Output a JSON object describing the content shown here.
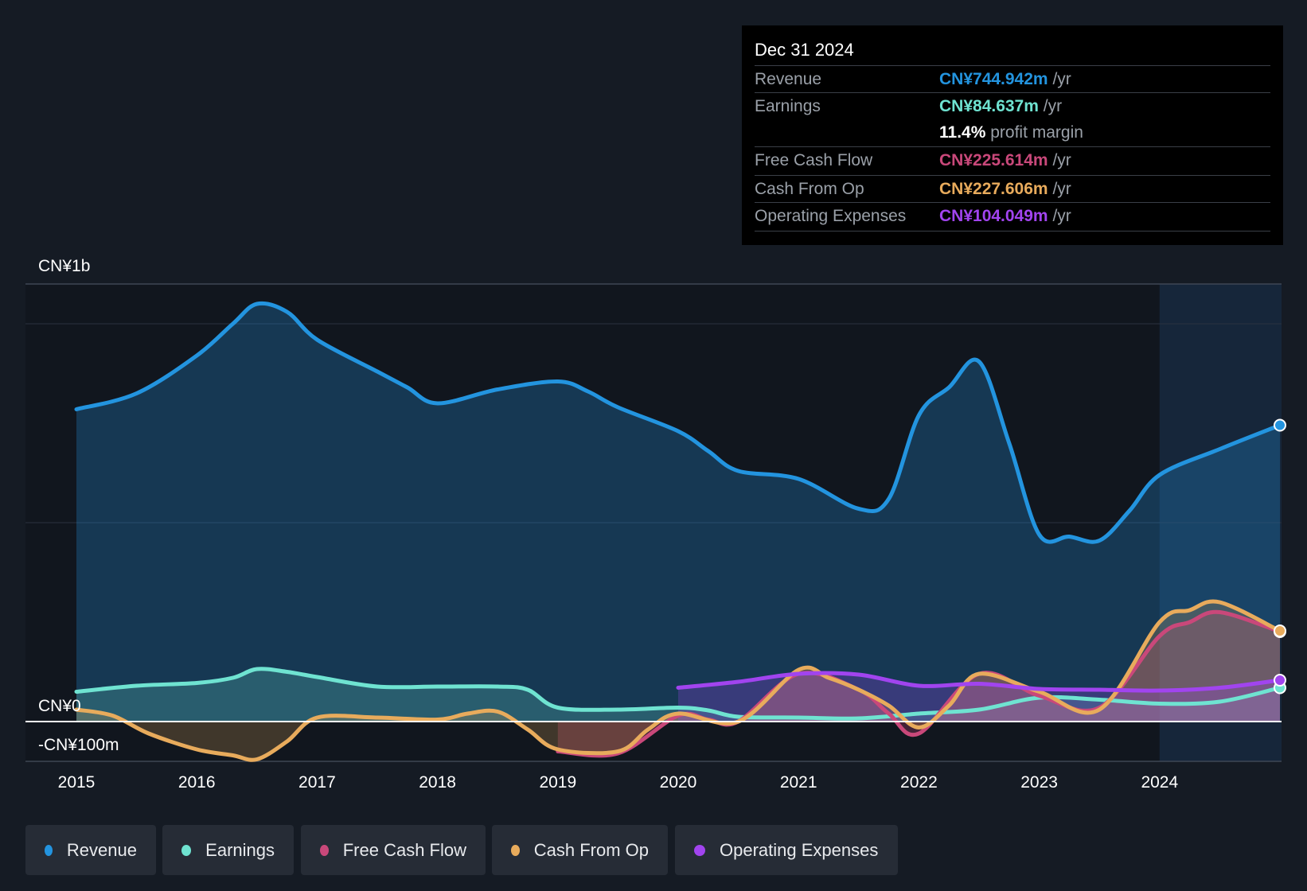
{
  "tooltip": {
    "date": "Dec 31 2024",
    "rows": [
      {
        "label": "Revenue",
        "value": "CN¥744.942m",
        "unit": "/yr",
        "color": "#2394df"
      },
      {
        "label": "Earnings",
        "value": "CN¥84.637m",
        "unit": "/yr",
        "color": "#6fe3d1"
      },
      {
        "label": "",
        "value": "11.4%",
        "unit": "profit margin",
        "color": "#ffffff"
      },
      {
        "label": "Free Cash Flow",
        "value": "CN¥225.614m",
        "unit": "/yr",
        "color": "#c9487a"
      },
      {
        "label": "Cash From Op",
        "value": "CN¥227.606m",
        "unit": "/yr",
        "color": "#e8ab5c"
      },
      {
        "label": "Operating Expenses",
        "value": "CN¥104.049m",
        "unit": "/yr",
        "color": "#a144ef"
      }
    ]
  },
  "legend": [
    {
      "label": "Revenue",
      "color": "#2394df"
    },
    {
      "label": "Earnings",
      "color": "#6fe3d1"
    },
    {
      "label": "Free Cash Flow",
      "color": "#c9487a"
    },
    {
      "label": "Cash From Op",
      "color": "#e8ab5c"
    },
    {
      "label": "Operating Expenses",
      "color": "#a144ef"
    }
  ],
  "chart_data": {
    "type": "area",
    "y_unit": "CN¥m",
    "ylim": [
      -100,
      1100
    ],
    "y_tick_labels": [
      {
        "value": 1100,
        "label": "CN¥1b"
      },
      {
        "value": 0,
        "label": "CN¥0"
      },
      {
        "value": -100,
        "label": "-CN¥100m"
      }
    ],
    "x_range": [
      2015,
      2025
    ],
    "x_ticks": [
      "2015",
      "2016",
      "2017",
      "2018",
      "2019",
      "2020",
      "2021",
      "2022",
      "2023",
      "2024"
    ],
    "series": [
      {
        "name": "Revenue",
        "color": "#2394df",
        "points": [
          [
            2015,
            785
          ],
          [
            2015.5,
            825
          ],
          [
            2016,
            920
          ],
          [
            2016.3,
            1000
          ],
          [
            2016.5,
            1050
          ],
          [
            2016.75,
            1030
          ],
          [
            2017,
            960
          ],
          [
            2017.5,
            880
          ],
          [
            2017.75,
            840
          ],
          [
            2018,
            800
          ],
          [
            2018.5,
            835
          ],
          [
            2019,
            855
          ],
          [
            2019.25,
            830
          ],
          [
            2019.5,
            790
          ],
          [
            2020,
            730
          ],
          [
            2020.25,
            680
          ],
          [
            2020.5,
            630
          ],
          [
            2021,
            610
          ],
          [
            2021.5,
            535
          ],
          [
            2021.75,
            560
          ],
          [
            2022,
            770
          ],
          [
            2022.25,
            840
          ],
          [
            2022.5,
            905
          ],
          [
            2022.75,
            700
          ],
          [
            2023,
            470
          ],
          [
            2023.25,
            465
          ],
          [
            2023.5,
            455
          ],
          [
            2023.75,
            530
          ],
          [
            2024,
            620
          ],
          [
            2024.5,
            685
          ],
          [
            2025,
            745
          ]
        ]
      },
      {
        "name": "Earnings",
        "color": "#6fe3d1",
        "points": [
          [
            2015,
            75
          ],
          [
            2015.5,
            90
          ],
          [
            2016,
            97
          ],
          [
            2016.3,
            110
          ],
          [
            2016.5,
            132
          ],
          [
            2016.75,
            125
          ],
          [
            2017,
            112
          ],
          [
            2017.5,
            88
          ],
          [
            2018,
            88
          ],
          [
            2018.5,
            88
          ],
          [
            2018.75,
            80
          ],
          [
            2019,
            35
          ],
          [
            2019.5,
            30
          ],
          [
            2020,
            35
          ],
          [
            2020.25,
            28
          ],
          [
            2020.5,
            12
          ],
          [
            2021,
            10
          ],
          [
            2021.5,
            8
          ],
          [
            2022,
            20
          ],
          [
            2022.5,
            30
          ],
          [
            2023,
            60
          ],
          [
            2023.5,
            55
          ],
          [
            2024,
            45
          ],
          [
            2024.5,
            50
          ],
          [
            2025,
            85
          ]
        ]
      },
      {
        "name": "Free Cash Flow",
        "color": "#c9487a",
        "points": [
          [
            2019,
            -75
          ],
          [
            2019.5,
            -80
          ],
          [
            2020,
            15
          ],
          [
            2020.25,
            5
          ],
          [
            2020.5,
            0
          ],
          [
            2021,
            120
          ],
          [
            2021.5,
            80
          ],
          [
            2021.75,
            20
          ],
          [
            2022,
            -30
          ],
          [
            2022.5,
            120
          ],
          [
            2023,
            65
          ],
          [
            2023.5,
            35
          ],
          [
            2024,
            215
          ],
          [
            2024.25,
            250
          ],
          [
            2024.5,
            275
          ],
          [
            2025,
            226
          ]
        ]
      },
      {
        "name": "Cash From Op",
        "color": "#e8ab5c",
        "points": [
          [
            2015,
            30
          ],
          [
            2015.3,
            15
          ],
          [
            2015.6,
            -30
          ],
          [
            2016,
            -70
          ],
          [
            2016.3,
            -85
          ],
          [
            2016.5,
            -95
          ],
          [
            2016.75,
            -50
          ],
          [
            2017,
            10
          ],
          [
            2017.5,
            10
          ],
          [
            2018,
            5
          ],
          [
            2018.25,
            20
          ],
          [
            2018.5,
            25
          ],
          [
            2018.75,
            -20
          ],
          [
            2019,
            -70
          ],
          [
            2019.5,
            -75
          ],
          [
            2019.75,
            -20
          ],
          [
            2020,
            20
          ],
          [
            2020.5,
            0
          ],
          [
            2021,
            130
          ],
          [
            2021.25,
            110
          ],
          [
            2021.5,
            80
          ],
          [
            2021.75,
            40
          ],
          [
            2022,
            -15
          ],
          [
            2022.25,
            40
          ],
          [
            2022.5,
            120
          ],
          [
            2023,
            75
          ],
          [
            2023.5,
            30
          ],
          [
            2024,
            250
          ],
          [
            2024.25,
            280
          ],
          [
            2024.5,
            300
          ],
          [
            2025,
            228
          ]
        ]
      },
      {
        "name": "Operating Expenses",
        "color": "#a144ef",
        "points": [
          [
            2020,
            85
          ],
          [
            2020.5,
            100
          ],
          [
            2021,
            120
          ],
          [
            2021.5,
            118
          ],
          [
            2022,
            90
          ],
          [
            2022.5,
            95
          ],
          [
            2023,
            82
          ],
          [
            2023.5,
            80
          ],
          [
            2024,
            78
          ],
          [
            2024.5,
            85
          ],
          [
            2025,
            104
          ]
        ]
      }
    ]
  }
}
